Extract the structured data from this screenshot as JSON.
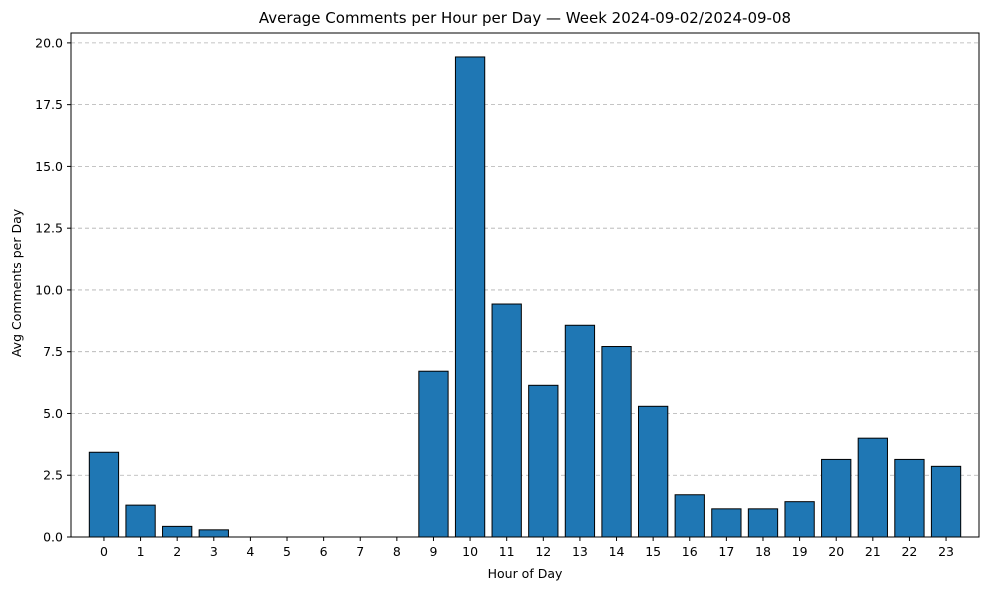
{
  "chart_data": {
    "type": "bar",
    "title": "Average Comments per Hour per Day — Week 2024-09-02/2024-09-08",
    "xlabel": "Hour of Day",
    "ylabel": "Avg Comments per Day",
    "categories": [
      "0",
      "1",
      "2",
      "3",
      "4",
      "5",
      "6",
      "7",
      "8",
      "9",
      "10",
      "11",
      "12",
      "13",
      "14",
      "15",
      "16",
      "17",
      "18",
      "19",
      "20",
      "21",
      "22",
      "23"
    ],
    "values": [
      3.43,
      1.29,
      0.43,
      0.29,
      0,
      0,
      0,
      0,
      0,
      6.71,
      19.43,
      9.43,
      6.14,
      8.57,
      7.71,
      5.29,
      1.71,
      1.14,
      1.14,
      1.43,
      3.14,
      4.0,
      3.14,
      2.86
    ],
    "ylim": [
      0,
      20.4
    ],
    "yticks": [
      0.0,
      2.5,
      5.0,
      7.5,
      10.0,
      12.5,
      15.0,
      17.5,
      20.0
    ],
    "ytick_labels": [
      "0.0",
      "2.5",
      "5.0",
      "7.5",
      "10.0",
      "12.5",
      "15.0",
      "17.5",
      "20.0"
    ],
    "grid": "y-dashed",
    "bar_color": "#1f77b4",
    "edge_color": "#000000"
  }
}
